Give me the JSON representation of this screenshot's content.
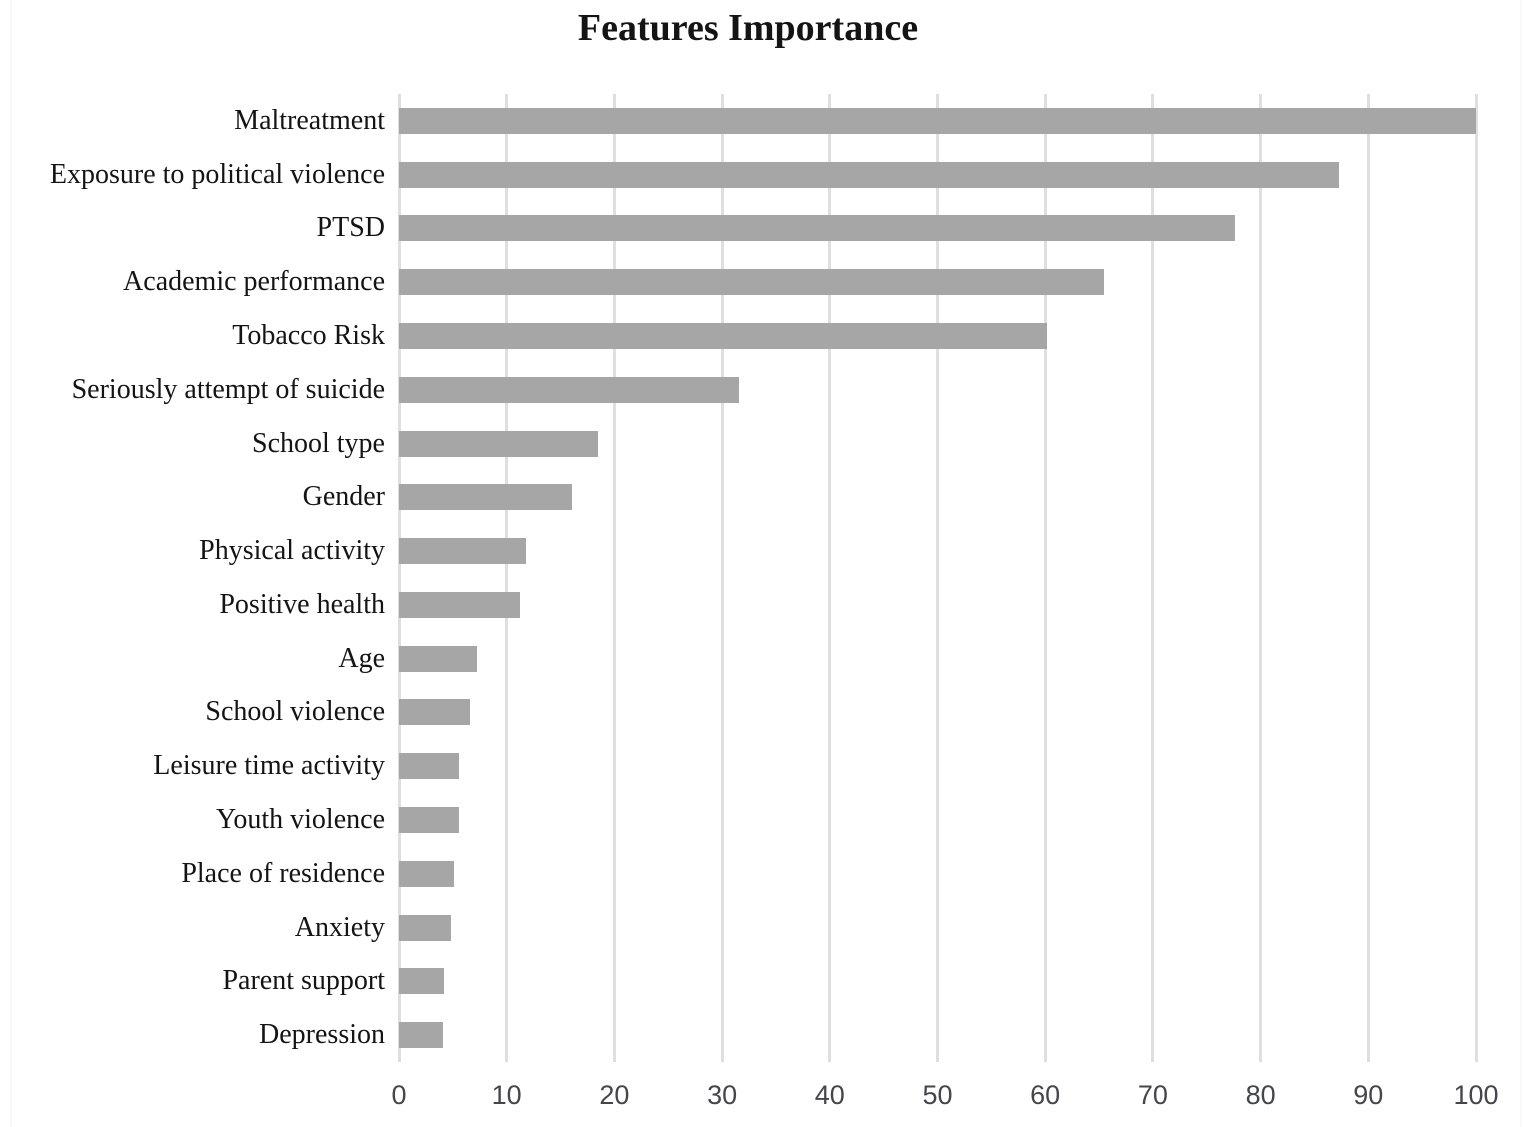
{
  "figure": {
    "background": "#ffffff"
  },
  "chart_data": {
    "type": "bar",
    "orientation": "horizontal",
    "title": "Features Importance",
    "categories": [
      "Maltreatment",
      "Exposure to political violence",
      "PTSD",
      "Academic performance",
      "Tobacco Risk",
      "Seriously attempt of suicide",
      "School type",
      "Gender",
      "Physical activity",
      "Positive health",
      "Age",
      "School violence",
      "Leisure time activity",
      "Youth violence",
      "Place of residence",
      "Anxiety",
      "Parent support",
      "Depression"
    ],
    "values": [
      100,
      87.3,
      77.6,
      65.5,
      60.2,
      31.6,
      18.5,
      16.1,
      11.8,
      11.2,
      7.2,
      6.6,
      5.6,
      5.6,
      5.1,
      4.8,
      4.2,
      4.1
    ],
    "xlabel": "",
    "ylabel": "",
    "xlim": [
      0,
      100
    ],
    "x_ticks": [
      0,
      10,
      20,
      30,
      40,
      50,
      60,
      70,
      80,
      90,
      100
    ],
    "grid": true,
    "legend": null,
    "bar_color": "#a6a6a6",
    "gridline_color": "#dfdfdf",
    "tick_label_color": "#45454d",
    "category_label_color": "#141414",
    "title_color": "#141414"
  }
}
